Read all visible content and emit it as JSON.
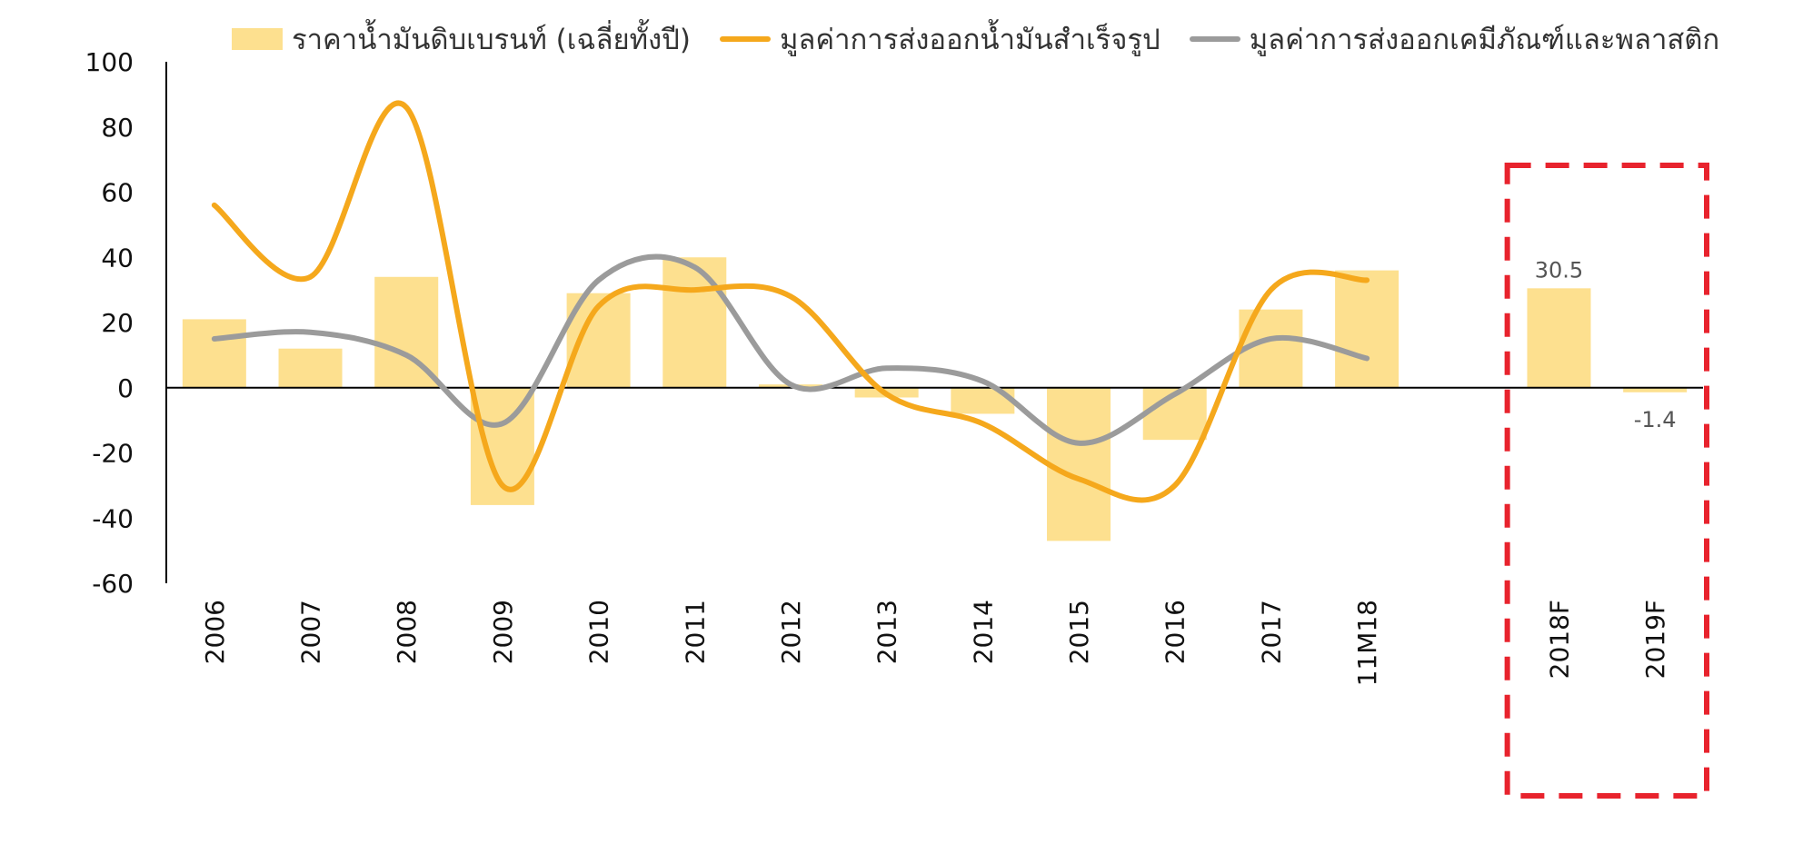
{
  "chart_data": {
    "type": "bar",
    "categories": [
      "2006",
      "2007",
      "2008",
      "2009",
      "2010",
      "2011",
      "2012",
      "2013",
      "2014",
      "2015",
      "2016",
      "2017",
      "11M18",
      "",
      "2018F",
      "2019F"
    ],
    "ylim": [
      -60,
      100
    ],
    "yticks": [
      100,
      80,
      60,
      40,
      20,
      0,
      -20,
      -40,
      -60
    ],
    "series": [
      {
        "name": "ราคาน้ำมันดิบเบรนท์ (เฉลี่ยทั้งปี)",
        "kind": "bar",
        "color": "#FDE08F",
        "values": [
          21,
          12,
          34,
          -36,
          29,
          40,
          1,
          -3,
          -8,
          -47,
          -16,
          24,
          36,
          null,
          30.5,
          -1.4
        ]
      },
      {
        "name": "มูลค่าการส่งออกน้ำมันสำเร็จรูป",
        "kind": "line",
        "color": "#F5A81C",
        "values": [
          56,
          34,
          86,
          -30,
          25,
          30,
          28,
          -2,
          -11,
          -28,
          -30,
          30,
          33,
          null,
          null,
          null
        ]
      },
      {
        "name": "มูลค่าการส่งออกเคมีภัณฑ์และพลาสติก",
        "kind": "line",
        "color": "#9B9B9B",
        "values": [
          15,
          17,
          10,
          -11,
          33,
          37,
          1,
          6,
          2,
          -17,
          -2,
          15,
          9,
          null,
          null,
          null
        ]
      }
    ],
    "data_labels": [
      {
        "category": "2018F",
        "text": "30.5"
      },
      {
        "category": "2019F",
        "text": "-1.4"
      }
    ],
    "annotation": {
      "type": "dashed-box",
      "color": "#E8232D",
      "covers": [
        "2018F",
        "2019F"
      ]
    }
  }
}
